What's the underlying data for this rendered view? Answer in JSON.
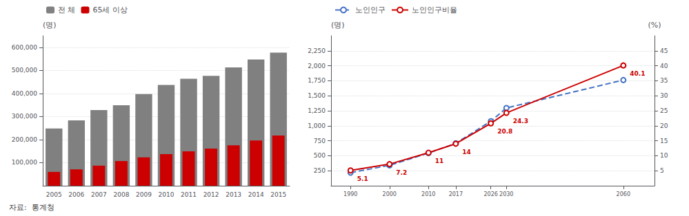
{
  "chart_data": [
    {
      "type": "bar",
      "categories": [
        "2005",
        "2006",
        "2007",
        "2008",
        "2009",
        "2010",
        "2011",
        "2012",
        "2013",
        "2014",
        "2015"
      ],
      "series": [
        {
          "name": "전 체",
          "color": "#808080",
          "values": [
            248000,
            283000,
            328000,
            349000,
            397000,
            437000,
            464000,
            476000,
            513000,
            547000,
            577000
          ]
        },
        {
          "name": "65세 이상",
          "color": "#cc0000",
          "values": [
            60000,
            71000,
            87000,
            107000,
            123000,
            137000,
            149000,
            161000,
            175000,
            196000,
            218000
          ]
        }
      ],
      "ylabel": "(명)",
      "ylim": [
        0,
        650000
      ],
      "yticks": [
        {
          "value": 100000,
          "label": "100,000"
        },
        {
          "value": 200000,
          "label": "200,000"
        },
        {
          "value": 300000,
          "label": "300,000"
        },
        {
          "value": 400000,
          "label": "400,000"
        },
        {
          "value": 500000,
          "label": "500,000"
        },
        {
          "value": 600000,
          "label": "600,000"
        }
      ],
      "grid": true,
      "legend": "upper left",
      "source": "자료:  통계청"
    },
    {
      "type": "line",
      "x": [
        1990,
        2000,
        2010,
        2017,
        2026,
        2030,
        2060
      ],
      "series": [
        {
          "name": "노인인구",
          "color": "#4472c4",
          "values": [
            217,
            340,
            545,
            707,
            1076,
            1296,
            1762
          ],
          "line_style": "dashed",
          "marker": "circle"
        },
        {
          "name": "노인인구비율",
          "color": "#cc0000",
          "values": [
            5.1,
            7.2,
            11,
            14,
            20.8,
            24.3,
            40.1
          ],
          "axis": "y2",
          "line_style": "solid",
          "marker": "circle",
          "data_labels": true
        }
      ],
      "ylabel": "(명)",
      "y2label": "(%)",
      "xlim": [
        1985,
        2068
      ],
      "xticks": [
        1990,
        2000,
        2010,
        2017,
        2026,
        2030,
        2060
      ],
      "ylim": [
        0,
        2500
      ],
      "yticks": [
        250,
        500,
        750,
        {
          "value": 1000,
          "label": "1,000"
        },
        {
          "value": 1250,
          "label": "1,250"
        },
        {
          "value": 1500,
          "label": "1,500"
        },
        {
          "value": 1750,
          "label": "1,750"
        },
        {
          "value": 2000,
          "label": "2,000"
        },
        {
          "value": 2250,
          "label": "2,250"
        }
      ],
      "y2lim": [
        0,
        50
      ],
      "y2ticks": [
        5,
        10,
        15,
        20,
        25,
        30,
        35,
        40,
        45
      ],
      "grid": true,
      "legend": "upper left"
    }
  ]
}
